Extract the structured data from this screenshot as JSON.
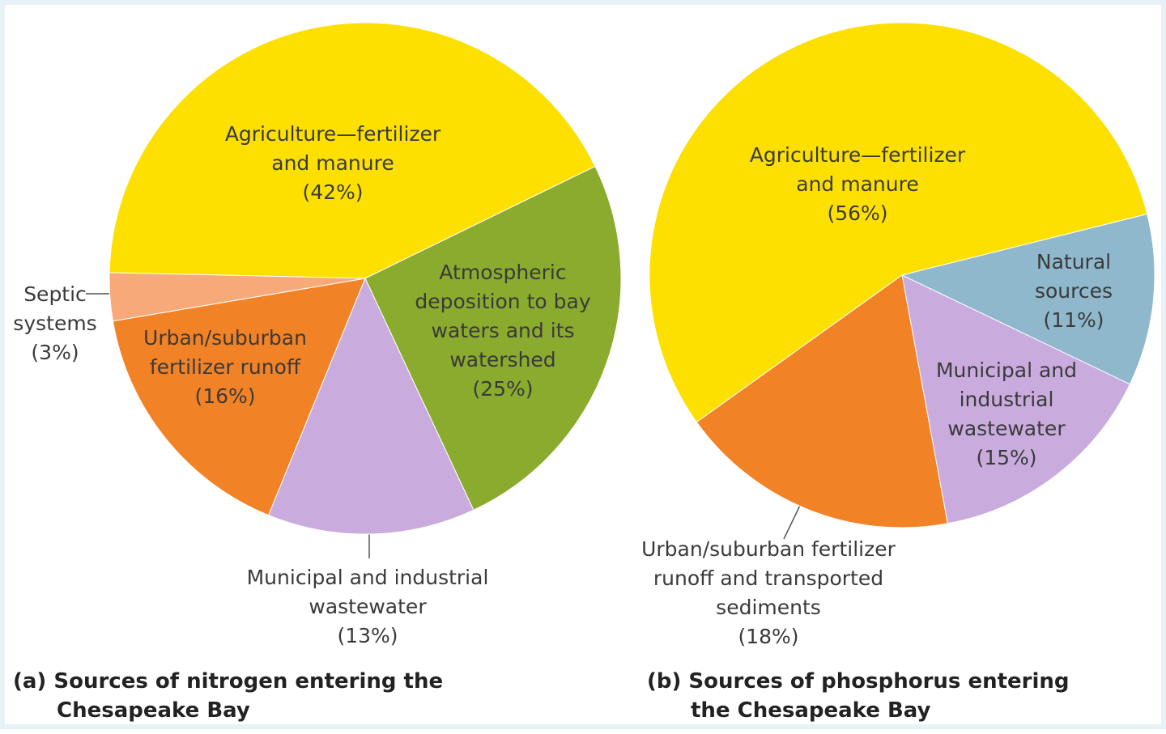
{
  "chart_data": [
    {
      "type": "pie",
      "title": "(a) Sources of nitrogen entering the Chesapeake Bay",
      "categories": [
        "Agriculture—fertilizer and manure",
        "Atmospheric deposition to bay waters and its watershed",
        "Municipal and industrial wastewater",
        "Urban/suburban fertilizer runoff",
        "Septic systems"
      ],
      "values": [
        42,
        25,
        13,
        16,
        3
      ],
      "value_labels": [
        "(42%)",
        "(25%)",
        "(13%)",
        "(16%)",
        "(3%)"
      ],
      "colors": [
        "#fde000",
        "#8aab2e",
        "#c9abdd",
        "#f28226",
        "#f7a97a"
      ]
    },
    {
      "type": "pie",
      "title": "(b) Sources of phosphorus entering the Chesapeake Bay",
      "categories": [
        "Agriculture—fertilizer and manure",
        "Natural sources",
        "Municipal and industrial wastewater",
        "Urban/suburban fertilizer runoff and transported sediments"
      ],
      "values": [
        56,
        11,
        15,
        18
      ],
      "value_labels": [
        "(56%)",
        "(11%)",
        "(15%)",
        "(18%)"
      ],
      "colors": [
        "#fde000",
        "#8fb8cc",
        "#c9abdd",
        "#f28226"
      ]
    }
  ]
}
